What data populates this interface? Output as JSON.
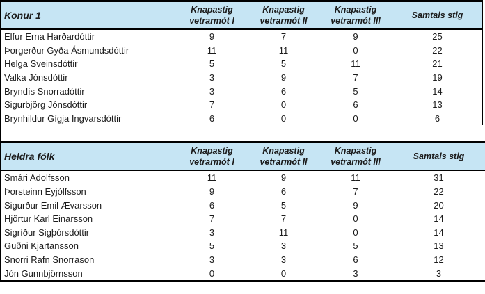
{
  "colors": {
    "header_bg": "#c6e5f4",
    "border": "#000000",
    "text": "#1b1b1b"
  },
  "tables": [
    {
      "title": "Konur 1",
      "columns": [
        "Knapastig vetrarmót I",
        "Knapastig vetrarmót II",
        "Knapastig vetrarmót III",
        "Samtals stig"
      ],
      "rows": [
        {
          "name": "Elfur Erna Harðardóttir",
          "scores": [
            9,
            7,
            9
          ],
          "total": 25
        },
        {
          "name": "Þorgerður Gyða Ásmundsdóttir",
          "scores": [
            11,
            11,
            0
          ],
          "total": 22
        },
        {
          "name": "Helga Sveinsdóttir",
          "scores": [
            5,
            5,
            11
          ],
          "total": 21
        },
        {
          "name": "Valka Jónsdóttir",
          "scores": [
            3,
            9,
            7
          ],
          "total": 19
        },
        {
          "name": "Bryndís Snorradóttir",
          "scores": [
            3,
            6,
            5
          ],
          "total": 14
        },
        {
          "name": "Sigurbjörg Jónsdóttir",
          "scores": [
            7,
            0,
            6
          ],
          "total": 13
        },
        {
          "name": "Brynhildur Gígja Ingvarsdóttir",
          "scores": [
            6,
            0,
            0
          ],
          "total": 6
        }
      ]
    },
    {
      "title": "Heldra fólk",
      "columns": [
        "Knapastig vetrarmót I",
        "Knapastig vetrarmót II",
        "Knapastig vetrarmót III",
        "Samtals stig"
      ],
      "rows": [
        {
          "name": "Smári Adolfsson",
          "scores": [
            11,
            9,
            11
          ],
          "total": 31
        },
        {
          "name": "Þorsteinn Eyjólfsson",
          "scores": [
            9,
            6,
            7
          ],
          "total": 22
        },
        {
          "name": "Sigurður Emil Ævarsson",
          "scores": [
            6,
            5,
            9
          ],
          "total": 20
        },
        {
          "name": "Hjörtur Karl Einarsson",
          "scores": [
            7,
            7,
            0
          ],
          "total": 14
        },
        {
          "name": "Sigríður Sigþórsdóttir",
          "scores": [
            3,
            11,
            0
          ],
          "total": 14
        },
        {
          "name": "Guðni Kjartansson",
          "scores": [
            5,
            3,
            5
          ],
          "total": 13
        },
        {
          "name": "Snorri Rafn Snorrason",
          "scores": [
            3,
            3,
            6
          ],
          "total": 12
        },
        {
          "name": "Jón Gunnbjörnsson",
          "scores": [
            0,
            0,
            3
          ],
          "total": 3
        }
      ]
    }
  ]
}
